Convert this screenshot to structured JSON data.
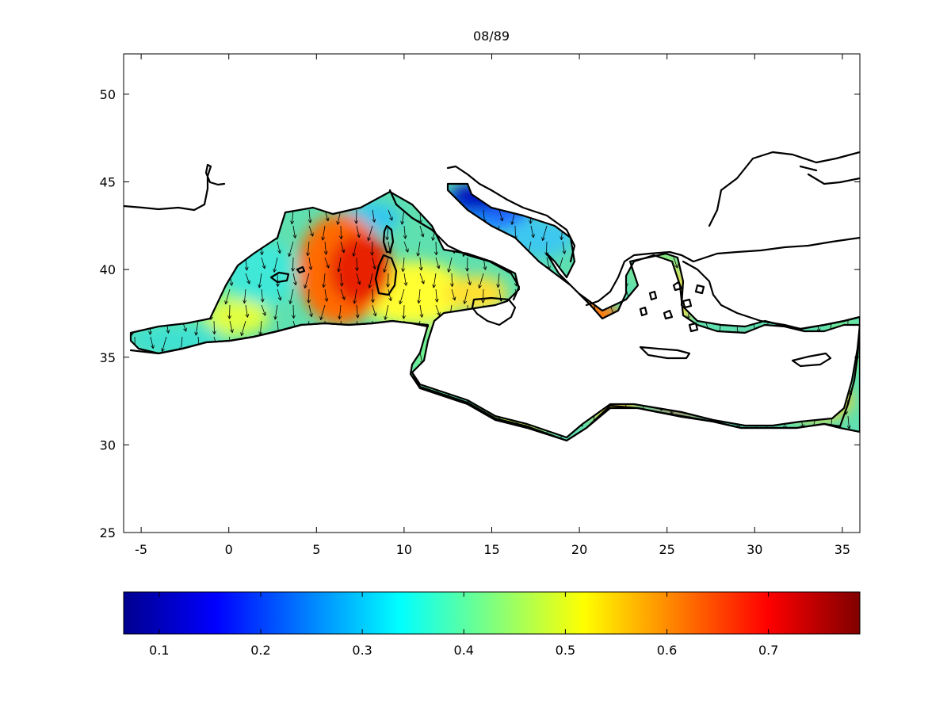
{
  "title": "08/89",
  "map": {
    "lon_range": [
      -6,
      36
    ],
    "lat_range": [
      25,
      52.3
    ],
    "x_ticks": [
      -5,
      0,
      5,
      10,
      15,
      20,
      25,
      30,
      35
    ],
    "y_ticks": [
      25,
      30,
      35,
      40,
      45,
      50
    ],
    "grid": false,
    "field": "scalar magnitude shaded with jet colormap, overlaid with direction arrows",
    "arrow_color": "#000000",
    "coastline_color": "#000000"
  },
  "colorbar": {
    "colormap": "jet",
    "orientation": "horizontal",
    "range": [
      0.065,
      0.79
    ],
    "ticks": [
      0.1,
      0.2,
      0.3,
      0.4,
      0.5,
      0.6,
      0.7
    ]
  }
}
